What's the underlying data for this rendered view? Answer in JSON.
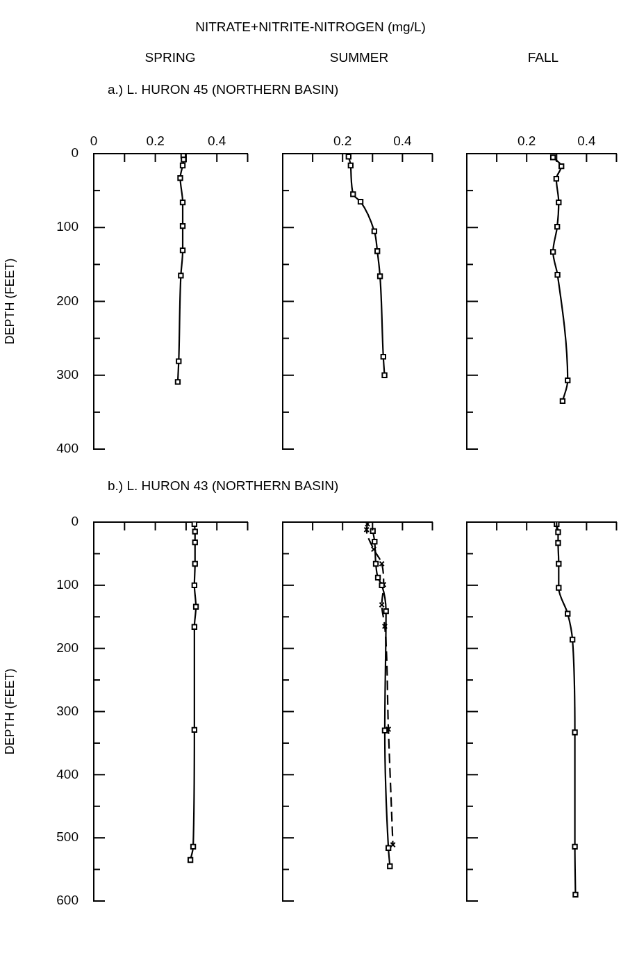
{
  "chart_data": [
    {
      "type": "line",
      "xlabel": "NITRATE+NITRITE-NITROGEN (mg/L)",
      "title": "SPRING",
      "subtitle": "a.) L. HURON 45 (NORTHERN BASIN)",
      "ylabel": "DEPTH (FEET)",
      "xlim": [
        0,
        0.5
      ],
      "xticks": [
        0,
        {
          "value": 0.1,
          "label": null
        },
        0.2,
        {
          "value": 0.3,
          "label": null
        },
        0.4,
        {
          "value": 0.5,
          "label": null
        }
      ],
      "ylim": [
        400,
        0
      ],
      "yticks": [
        0,
        {
          "value": 50,
          "label": null
        },
        100,
        {
          "value": 150,
          "label": null
        },
        200,
        {
          "value": 250,
          "label": null
        },
        300,
        {
          "value": 350,
          "label": null
        },
        400
      ],
      "marker": "square",
      "line_style": "solid",
      "series": [
        {
          "color": "#000000",
          "x": [
            0.291,
            0.292,
            0.289,
            0.281,
            0.289,
            0.289,
            0.289,
            0.283,
            0.276,
            0.273
          ],
          "values": [
            3,
            8,
            16,
            33,
            66,
            98,
            131,
            165,
            281,
            309
          ]
        }
      ]
    },
    {
      "type": "line",
      "title": "SUMMER",
      "xlim": [
        0,
        0.5
      ],
      "xticks": [
        {
          "value": 0.1,
          "label": null
        },
        0.2,
        {
          "value": 0.3,
          "label": null
        },
        0.4,
        {
          "value": 0.5,
          "label": null
        }
      ],
      "ylim": [
        400,
        0
      ],
      "yticks": [
        0,
        {
          "value": 50,
          "label": null
        },
        100,
        {
          "value": 150,
          "label": null
        },
        200,
        {
          "value": 250,
          "label": null
        },
        300,
        {
          "value": 350,
          "label": null
        },
        400
      ],
      "tick_labels": "x",
      "marker": "square",
      "line_style": "solid",
      "series": [
        {
          "color": "#000000",
          "x": [
            0.22,
            0.227,
            0.235,
            0.26,
            0.306,
            0.316,
            0.325,
            0.336,
            0.34
          ],
          "values": [
            4,
            16,
            55,
            65,
            105,
            132,
            166,
            275,
            300
          ]
        }
      ]
    },
    {
      "type": "line",
      "title": "FALL",
      "xlim": [
        0,
        0.5
      ],
      "xticks": [
        {
          "value": 0.1,
          "label": null
        },
        0.2,
        {
          "value": 0.3,
          "label": null
        },
        0.4,
        {
          "value": 0.5,
          "label": null
        }
      ],
      "ylim": [
        400,
        0
      ],
      "yticks": [
        0,
        {
          "value": 50,
          "label": null
        },
        100,
        {
          "value": 150,
          "label": null
        },
        200,
        {
          "value": 250,
          "label": null
        },
        300,
        {
          "value": 350,
          "label": null
        },
        400
      ],
      "tick_labels": "x",
      "marker": "square",
      "line_style": "solid",
      "series": [
        {
          "color": "#000000",
          "x": [
            0.288,
            0.316,
            0.299,
            0.307,
            0.302,
            0.288,
            0.303,
            0.337,
            0.32
          ],
          "values": [
            5,
            17,
            34,
            66,
            99,
            133,
            164,
            307,
            335
          ]
        }
      ]
    },
    {
      "type": "line",
      "subtitle": "b.) L. HURON 43 (NORTHERN BASIN)",
      "ylabel": "DEPTH (FEET)",
      "xlim": [
        0,
        0.5
      ],
      "xticks": [
        {
          "value": 0.1,
          "label": null
        },
        {
          "value": 0.2,
          "label": null
        },
        {
          "value": 0.3,
          "label": null
        },
        {
          "value": 0.4,
          "label": null
        },
        {
          "value": 0.5,
          "label": null
        }
      ],
      "ylim": [
        600,
        0
      ],
      "yticks": [
        0,
        {
          "value": 50,
          "label": null
        },
        100,
        {
          "value": 150,
          "label": null
        },
        200,
        {
          "value": 250,
          "label": null
        },
        300,
        {
          "value": 350,
          "label": null
        },
        400,
        {
          "value": 450,
          "label": null
        },
        500,
        {
          "value": 550,
          "label": null
        },
        600
      ],
      "tick_labels": "y",
      "marker": "square",
      "line_style": "solid",
      "series": [
        {
          "color": "#000000",
          "x": [
            0.327,
            0.329,
            0.329,
            0.329,
            0.327,
            0.332,
            0.327,
            0.327,
            0.323,
            0.314
          ],
          "values": [
            3,
            15,
            32,
            66,
            100,
            134,
            166,
            329,
            514,
            535
          ]
        }
      ]
    },
    {
      "type": "line",
      "xlim": [
        0,
        0.5
      ],
      "xticks": [
        {
          "value": 0.1,
          "label": null
        },
        {
          "value": 0.2,
          "label": null
        },
        {
          "value": 0.3,
          "label": null
        },
        {
          "value": 0.4,
          "label": null
        },
        {
          "value": 0.5,
          "label": null
        }
      ],
      "ylim": [
        600,
        0
      ],
      "yticks": [
        0,
        {
          "value": 50,
          "label": null
        },
        100,
        {
          "value": 150,
          "label": null
        },
        200,
        {
          "value": 250,
          "label": null
        },
        300,
        {
          "value": 350,
          "label": null
        },
        400,
        {
          "value": 450,
          "label": null
        },
        500,
        {
          "value": 550,
          "label": null
        },
        600
      ],
      "tick_labels": false,
      "marker": "square",
      "line_style": "solid",
      "series": [
        {
          "color": "#000000",
          "x": [
            0.301,
            0.307,
            0.311,
            0.318,
            0.331,
            0.345,
            0.341,
            0.353,
            0.358
          ],
          "values": [
            14,
            31,
            66,
            88,
            100,
            141,
            330,
            516,
            545
          ]
        },
        {
          "color": "#000000",
          "marker": "cross",
          "line_style": "dashed",
          "x": [
            0.283,
            0.28,
            0.304,
            0.331,
            0.337,
            0.331,
            0.341,
            0.353,
            0.368
          ],
          "values": [
            3,
            12,
            43,
            66,
            99,
            131,
            165,
            328,
            511
          ]
        }
      ]
    },
    {
      "type": "line",
      "xlim": [
        0,
        0.5
      ],
      "xticks": [
        {
          "value": 0.1,
          "label": null
        },
        {
          "value": 0.2,
          "label": null
        },
        {
          "value": 0.3,
          "label": null
        },
        {
          "value": 0.4,
          "label": null
        },
        {
          "value": 0.5,
          "label": null
        }
      ],
      "ylim": [
        600,
        0
      ],
      "yticks": [
        0,
        {
          "value": 50,
          "label": null
        },
        100,
        {
          "value": 150,
          "label": null
        },
        200,
        {
          "value": 250,
          "label": null
        },
        300,
        {
          "value": 350,
          "label": null
        },
        400,
        {
          "value": 450,
          "label": null
        },
        500,
        {
          "value": 550,
          "label": null
        },
        600
      ],
      "tick_labels": false,
      "marker": "square",
      "line_style": "solid",
      "series": [
        {
          "color": "#000000",
          "x": [
            0.3,
            0.305,
            0.305,
            0.307,
            0.307,
            0.337,
            0.353,
            0.361,
            0.361,
            0.363
          ],
          "values": [
            3,
            16,
            33,
            66,
            104,
            145,
            186,
            333,
            514,
            590
          ]
        }
      ]
    }
  ]
}
